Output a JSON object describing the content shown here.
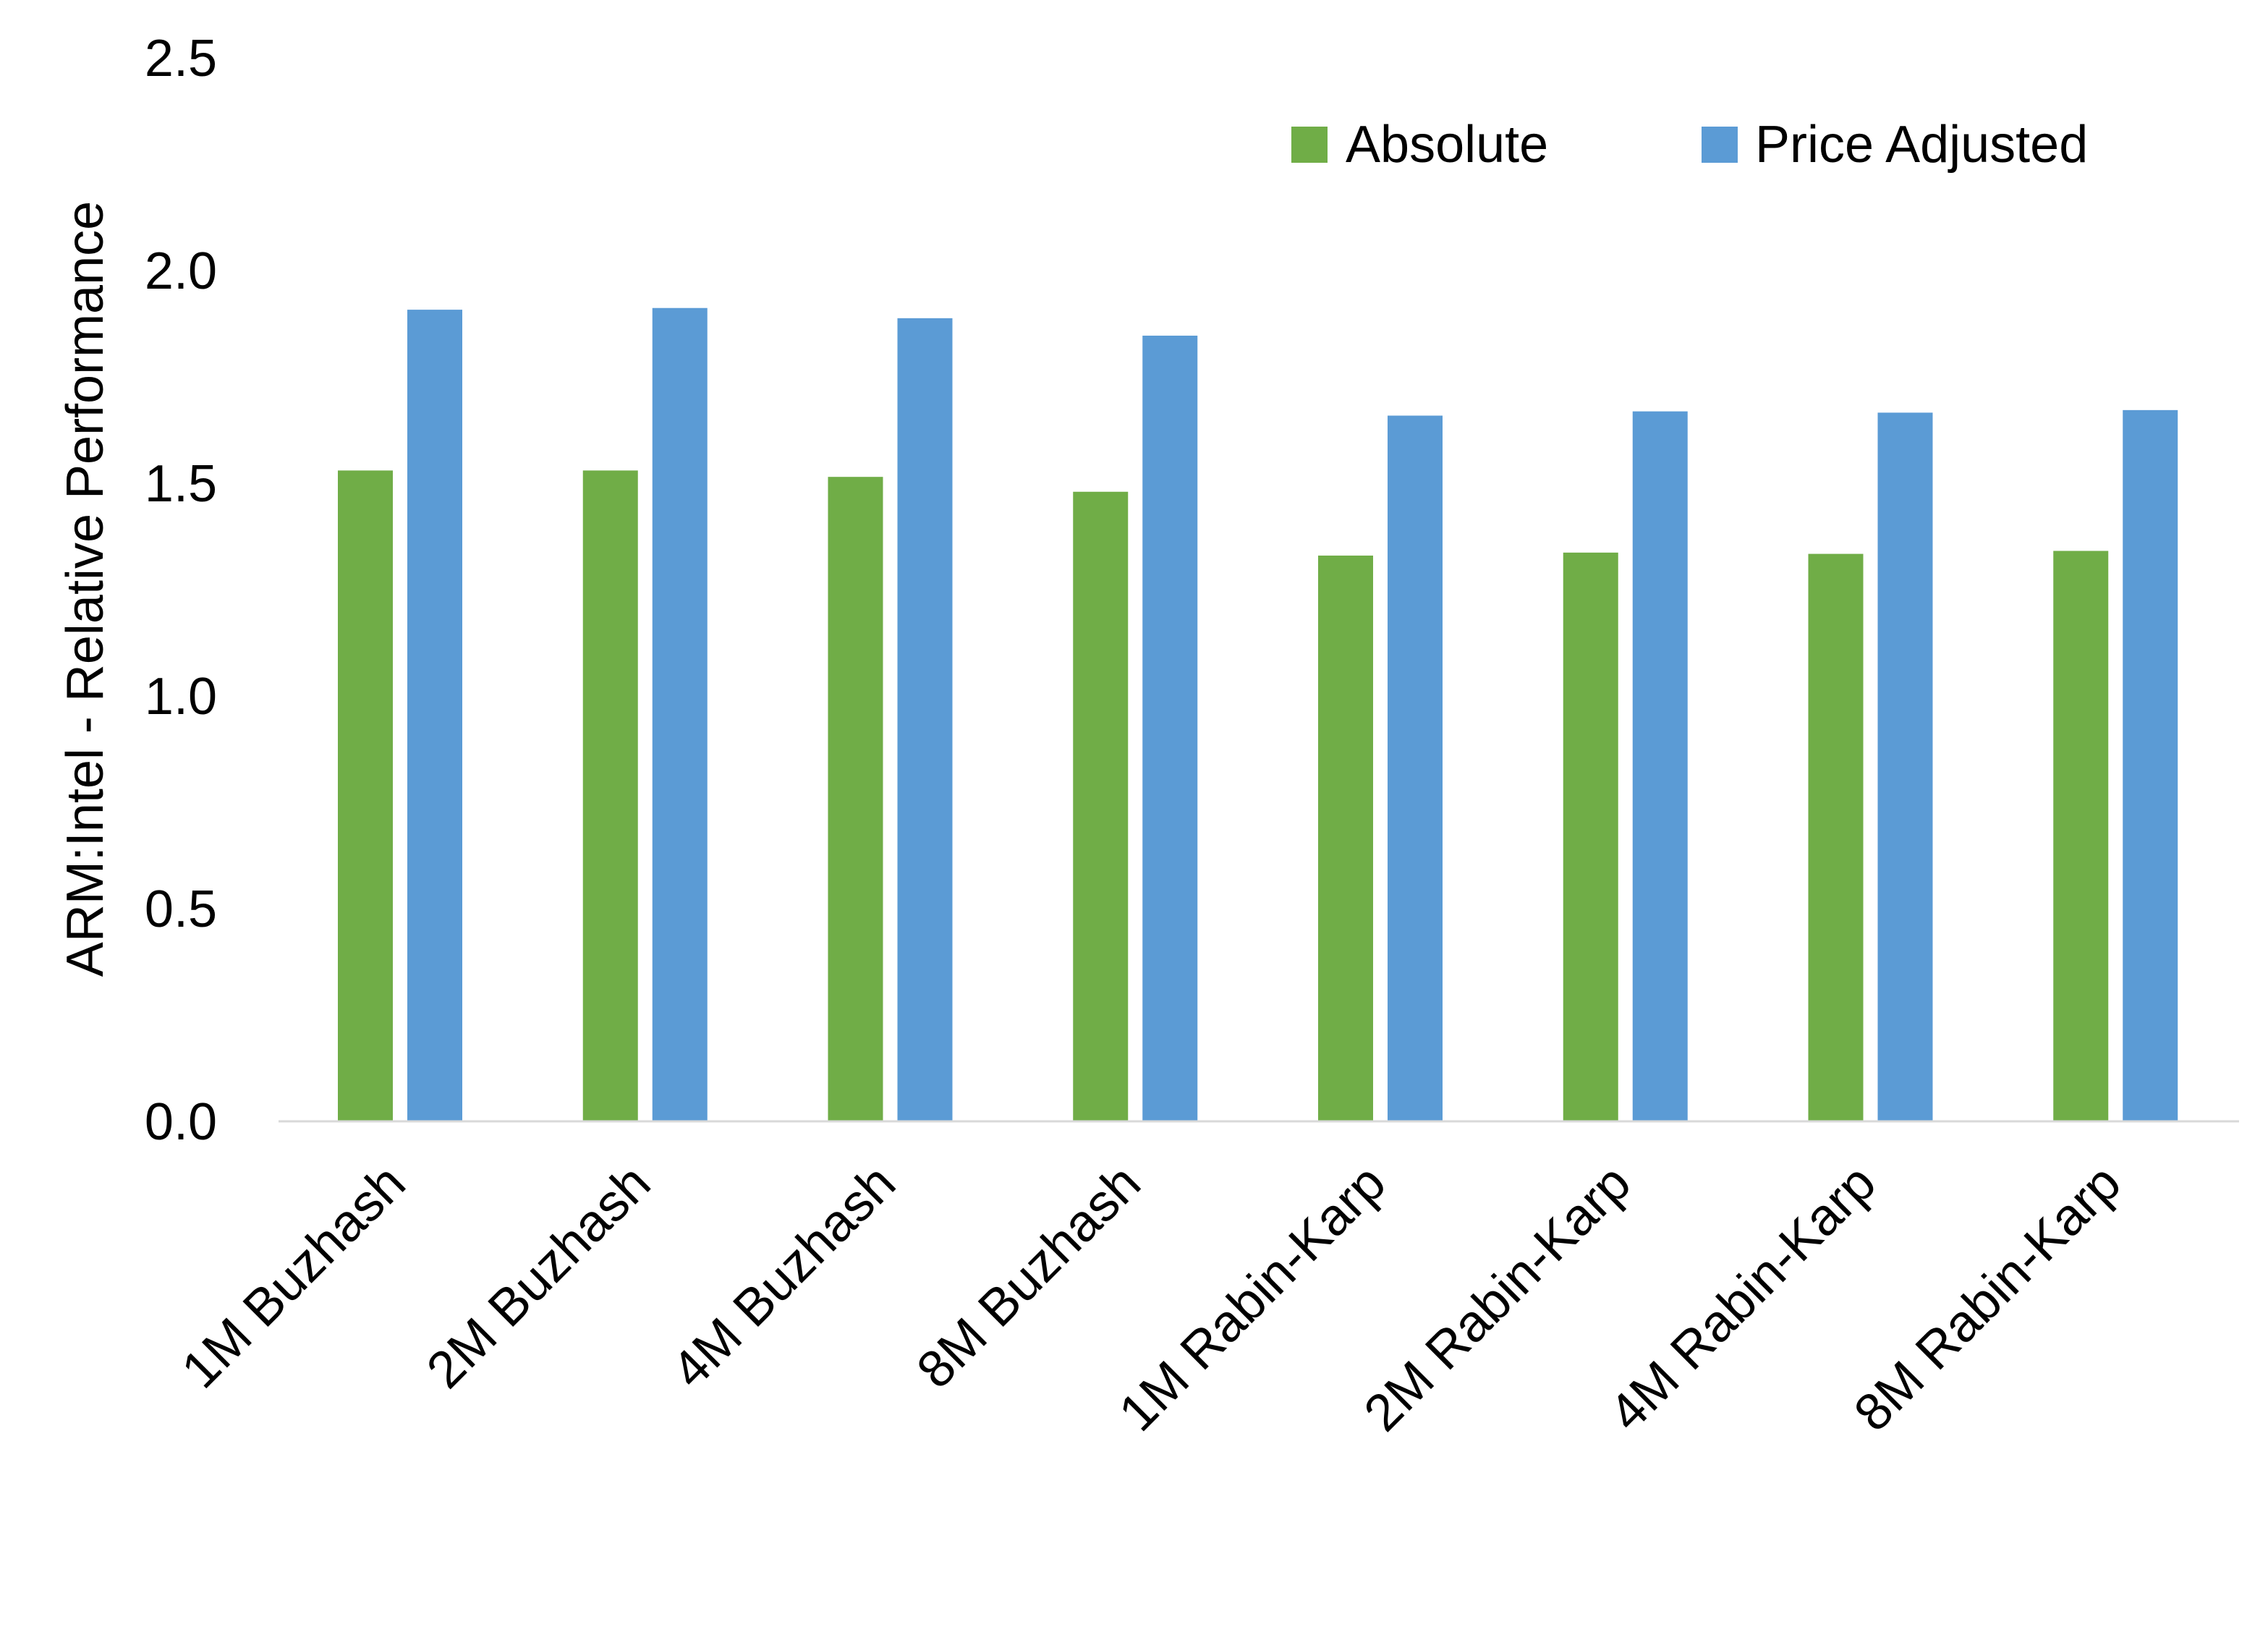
{
  "chart_data": {
    "type": "bar",
    "title": "",
    "xlabel": "",
    "ylabel": "ARM:Intel - Relative Performance",
    "ylim": [
      0,
      2.5
    ],
    "yticks": [
      "0.0",
      "0.5",
      "1.0",
      "1.5",
      "2.0",
      "2.5"
    ],
    "grid": false,
    "legend_position": "top-right",
    "categories": [
      "1M Buzhash",
      "2M Buzhash",
      "4M Buzhash",
      "8M Buzhash",
      "1M Rabin-Karp",
      "2M Rabin-Karp",
      "4M Rabin-Karp",
      "8M Rabin-Karp"
    ],
    "series": [
      {
        "name": "Absolute",
        "color": "#70AD47",
        "values": [
          1.53,
          1.53,
          1.515,
          1.48,
          1.33,
          1.337,
          1.334,
          1.341
        ]
      },
      {
        "name": "Price Adjusted",
        "color": "#5B9BD5",
        "values": [
          1.908,
          1.912,
          1.888,
          1.847,
          1.659,
          1.669,
          1.666,
          1.672
        ]
      }
    ]
  }
}
